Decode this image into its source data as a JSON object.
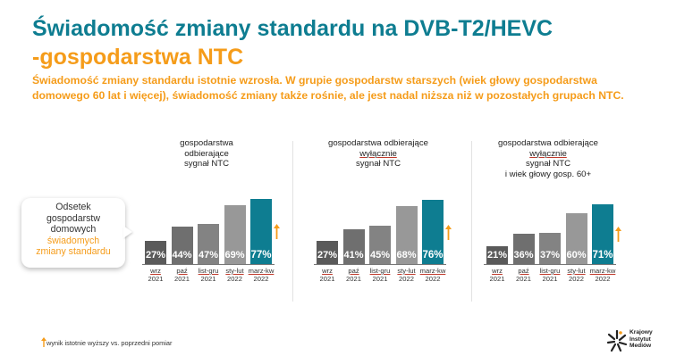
{
  "title": {
    "line1": "Świadomość zmiany standardu na DVB-T2/HEVC",
    "line2": "-gospodarstwa NTC"
  },
  "subtitle": "Świadomość zmiany standardu istotnie wzrosła. W grupie gospodarstw starszych (wiek głowy gospodarstwa domowego 60 lat i więcej), świadomość zmiany także rośnie, ale jest nadal niższa niż w pozostałych grupach NTC.",
  "callout": {
    "line1": "Odsetek",
    "line2": "gospodarstw",
    "line3": "domowych",
    "line4": "świadomych",
    "line5": "zmiany standardu"
  },
  "legend": {
    "text": "wynik istotnie wyższy vs. poprzedni pomiar"
  },
  "logo": {
    "line1": "Krajowy",
    "line2": "Instytut",
    "line3": "Mediów"
  },
  "colors": {
    "teal": "#0e7d91",
    "orange": "#f59c1a",
    "bar_shades": [
      "#5a5a5a",
      "#6f6f6f",
      "#838383",
      "#989898"
    ]
  },
  "chart_data": [
    {
      "type": "bar",
      "title_lines": [
        "gospodarstwa",
        "odbierające",
        "sygnał NTC"
      ],
      "categories": [
        {
          "period": "wrz",
          "year": "2021"
        },
        {
          "period": "paź",
          "year": "2021"
        },
        {
          "period": "list-gru",
          "year": "2021"
        },
        {
          "period": "sty-lut",
          "year": "2022"
        },
        {
          "period": "marz-kw",
          "year": "2022"
        }
      ],
      "values": [
        27,
        44,
        47,
        69,
        77
      ],
      "labels": [
        "27%",
        "44%",
        "47%",
        "69%",
        "77%"
      ],
      "unit": "%",
      "significant_increase_last": true
    },
    {
      "type": "bar",
      "title_lines": [
        "gospodarstwa odbierające",
        "wyłącznie",
        "sygnał  NTC"
      ],
      "categories": [
        {
          "period": "wrz",
          "year": "2021"
        },
        {
          "period": "paź",
          "year": "2021"
        },
        {
          "period": "list-gru",
          "year": "2021"
        },
        {
          "period": "sty-lut",
          "year": "2022"
        },
        {
          "period": "marz-kw",
          "year": "2022"
        }
      ],
      "values": [
        27,
        41,
        45,
        68,
        76
      ],
      "labels": [
        "27%",
        "41%",
        "45%",
        "68%",
        "76%"
      ],
      "unit": "%",
      "significant_increase_last": true
    },
    {
      "type": "bar",
      "title_lines": [
        "gospodarstwa odbierające",
        "wyłącznie",
        "sygnał NTC",
        "i wiek głowy gosp. 60+"
      ],
      "categories": [
        {
          "period": "wrz",
          "year": "2021"
        },
        {
          "period": "paź",
          "year": "2021"
        },
        {
          "period": "list-gru",
          "year": "2021"
        },
        {
          "period": "sty-lut",
          "year": "2022"
        },
        {
          "period": "marz-kw",
          "year": "2022"
        }
      ],
      "values": [
        21,
        36,
        37,
        60,
        71
      ],
      "labels": [
        "21%",
        "36%",
        "37%",
        "60%",
        "71%"
      ],
      "unit": "%",
      "significant_increase_last": true
    }
  ]
}
